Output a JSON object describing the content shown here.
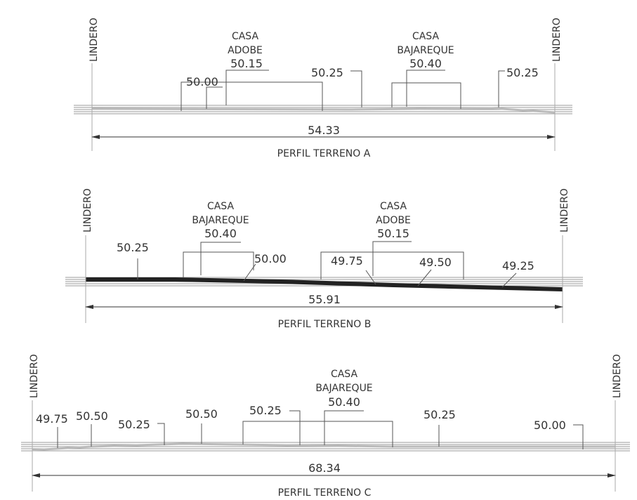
{
  "profiles": [
    {
      "title": "PERFIL TERRENO A",
      "dimension": "54.33",
      "boundary_left": "LINDERO",
      "boundary_right": "LINDERO",
      "houses": [
        {
          "type_line1": "CASA",
          "type_line2": "ADOBE",
          "elevation": "50.15"
        },
        {
          "type_line1": "CASA",
          "type_line2": "BAJAREQUE",
          "elevation": "50.40"
        }
      ],
      "elevations": [
        "50.00",
        "50.25",
        "50.25"
      ]
    },
    {
      "title": "PERFIL TERRENO B",
      "dimension": "55.91",
      "boundary_left": "LINDERO",
      "boundary_right": "LINDERO",
      "houses": [
        {
          "type_line1": "CASA",
          "type_line2": "BAJAREQUE",
          "elevation": "50.40"
        },
        {
          "type_line1": "CASA",
          "type_line2": "ADOBE",
          "elevation": "50.15"
        }
      ],
      "elevations": [
        "50.25",
        "50.00",
        "49.75",
        "49.50",
        "49.25"
      ]
    },
    {
      "title": "PERFIL TERRENO C",
      "dimension": "68.34",
      "boundary_left": "LINDERO",
      "boundary_right": "LINDERO",
      "houses": [
        {
          "type_line1": "CASA",
          "type_line2": "BAJAREQUE",
          "elevation": "50.40"
        }
      ],
      "elevations": [
        "49.75",
        "50.50",
        "50.25",
        "50.50",
        "50.25",
        "50.25",
        "50.00"
      ]
    }
  ]
}
